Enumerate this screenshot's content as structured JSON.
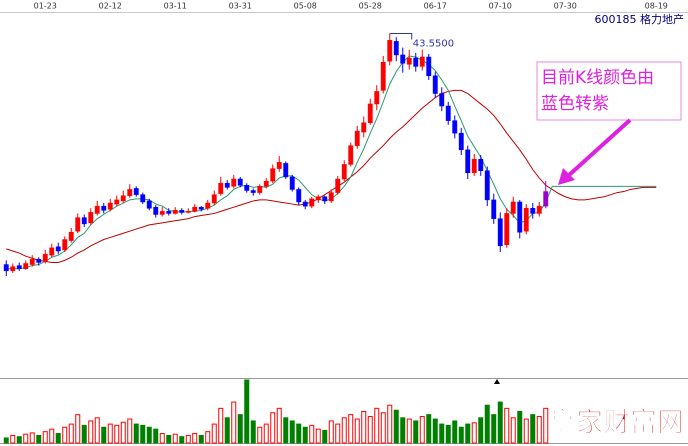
{
  "chart_data": {
    "type": "candlestick",
    "title": "600185  格力地产",
    "categories": [
      null,
      null,
      null,
      null,
      null,
      null,
      "01-23",
      null,
      null,
      null,
      null,
      null,
      null,
      null,
      null,
      null,
      "02-12",
      null,
      null,
      null,
      null,
      null,
      null,
      null,
      null,
      null,
      "03-11",
      null,
      null,
      null,
      null,
      null,
      null,
      null,
      null,
      null,
      "03-31",
      null,
      null,
      null,
      null,
      null,
      null,
      null,
      null,
      null,
      "05-08",
      null,
      null,
      null,
      null,
      null,
      null,
      null,
      null,
      null,
      "05-28",
      null,
      null,
      null,
      null,
      null,
      null,
      null,
      null,
      null,
      "06-17",
      null,
      null,
      null,
      null,
      null,
      null,
      null,
      null,
      null,
      "07-10",
      null,
      null,
      null,
      null,
      null,
      null,
      null,
      null,
      null,
      "07-30",
      null,
      null,
      null,
      null,
      null,
      null,
      null,
      null,
      null,
      null,
      null,
      null,
      null,
      "08-19"
    ],
    "candles": [
      [
        21.4,
        21.8,
        20.3,
        20.8
      ],
      [
        20.8,
        21.5,
        20.6,
        21.2
      ],
      [
        21.3,
        21.6,
        20.8,
        21.0
      ],
      [
        21.0,
        21.8,
        20.9,
        21.5
      ],
      [
        21.4,
        22.3,
        21.2,
        21.9
      ],
      [
        21.9,
        22.1,
        21.3,
        21.6
      ],
      [
        21.7,
        22.8,
        21.5,
        22.4
      ],
      [
        22.3,
        23.4,
        22.1,
        23.0
      ],
      [
        23.1,
        23.5,
        22.4,
        22.7
      ],
      [
        22.8,
        24.1,
        22.6,
        23.8
      ],
      [
        23.7,
        24.9,
        23.5,
        24.5
      ],
      [
        24.6,
        26.3,
        24.4,
        25.9
      ],
      [
        25.9,
        26.2,
        25.0,
        25.3
      ],
      [
        25.4,
        26.8,
        25.2,
        26.4
      ],
      [
        26.3,
        27.5,
        26.1,
        27.0
      ],
      [
        27.0,
        27.3,
        26.3,
        26.6
      ],
      [
        26.7,
        27.7,
        26.5,
        27.3
      ],
      [
        27.2,
        28.0,
        27.0,
        27.6
      ],
      [
        27.5,
        28.5,
        27.3,
        28.0
      ],
      [
        28.0,
        29.1,
        27.8,
        28.6
      ],
      [
        28.7,
        28.9,
        27.9,
        28.1
      ],
      [
        28.1,
        28.3,
        27.2,
        27.4
      ],
      [
        27.5,
        27.7,
        26.6,
        26.8
      ],
      [
        26.9,
        27.1,
        25.9,
        26.2
      ],
      [
        26.2,
        26.9,
        26.0,
        26.5
      ],
      [
        26.5,
        26.8,
        26.1,
        26.3
      ],
      [
        26.3,
        26.9,
        26.2,
        26.6
      ],
      [
        26.6,
        26.8,
        26.2,
        26.4
      ],
      [
        26.4,
        26.8,
        26.3,
        26.5
      ],
      [
        26.5,
        27.2,
        26.4,
        26.9
      ],
      [
        26.9,
        27.0,
        26.5,
        26.7
      ],
      [
        26.8,
        27.6,
        26.6,
        27.3
      ],
      [
        27.3,
        28.5,
        27.1,
        28.1
      ],
      [
        28.2,
        29.8,
        28.0,
        29.2
      ],
      [
        29.2,
        29.5,
        28.6,
        28.8
      ],
      [
        28.9,
        30.0,
        28.7,
        29.6
      ],
      [
        29.6,
        29.8,
        28.8,
        29.0
      ],
      [
        29.0,
        29.2,
        28.3,
        28.5
      ],
      [
        28.5,
        28.7,
        28.0,
        28.3
      ],
      [
        28.3,
        29.1,
        28.1,
        28.9
      ],
      [
        28.9,
        29.7,
        28.7,
        29.4
      ],
      [
        29.4,
        31.0,
        29.2,
        30.6
      ],
      [
        30.6,
        31.8,
        30.3,
        31.2
      ],
      [
        31.1,
        31.3,
        29.6,
        29.8
      ],
      [
        29.8,
        30.0,
        28.4,
        28.6
      ],
      [
        28.6,
        28.8,
        27.1,
        27.4
      ],
      [
        27.4,
        27.6,
        26.7,
        27.0
      ],
      [
        27.0,
        27.9,
        26.8,
        27.7
      ],
      [
        27.6,
        28.1,
        27.3,
        27.9
      ],
      [
        27.9,
        28.0,
        27.2,
        27.5
      ],
      [
        27.5,
        28.6,
        27.3,
        28.3
      ],
      [
        28.3,
        29.9,
        28.1,
        29.6
      ],
      [
        29.6,
        31.4,
        29.4,
        31.0
      ],
      [
        31.0,
        33.1,
        30.8,
        32.8
      ],
      [
        32.8,
        34.7,
        32.5,
        34.2
      ],
      [
        34.1,
        35.6,
        33.6,
        35.0
      ],
      [
        35.0,
        37.3,
        34.8,
        36.8
      ],
      [
        36.8,
        38.6,
        36.2,
        38.0
      ],
      [
        38.1,
        41.4,
        37.8,
        40.8
      ],
      [
        40.9,
        43.55,
        40.5,
        42.9
      ],
      [
        42.8,
        43.2,
        40.9,
        41.5
      ],
      [
        41.5,
        42.2,
        39.8,
        40.7
      ],
      [
        40.6,
        42.0,
        40.1,
        41.2
      ],
      [
        41.2,
        41.7,
        39.9,
        40.4
      ],
      [
        40.4,
        42.0,
        40.0,
        41.3
      ],
      [
        41.3,
        41.6,
        39.1,
        39.5
      ],
      [
        39.5,
        39.9,
        37.4,
        37.8
      ],
      [
        37.8,
        38.4,
        36.1,
        36.6
      ],
      [
        36.6,
        37.0,
        34.8,
        35.2
      ],
      [
        35.2,
        35.7,
        33.5,
        34.0
      ],
      [
        34.0,
        34.5,
        31.9,
        32.4
      ],
      [
        32.4,
        32.8,
        29.6,
        30.2
      ],
      [
        30.2,
        32.0,
        29.9,
        31.5
      ],
      [
        31.5,
        31.9,
        29.9,
        30.4
      ],
      [
        30.4,
        30.8,
        27.0,
        27.6
      ],
      [
        27.6,
        28.2,
        25.3,
        25.8
      ],
      [
        25.8,
        26.4,
        22.6,
        23.2
      ],
      [
        23.3,
        26.8,
        23.0,
        26.3
      ],
      [
        26.3,
        27.9,
        25.9,
        27.4
      ],
      [
        27.4,
        27.6,
        23.9,
        24.5
      ],
      [
        24.6,
        27.2,
        24.3,
        26.8
      ],
      [
        26.8,
        27.3,
        25.8,
        26.3
      ],
      [
        26.3,
        27.4,
        26.0,
        27.0
      ],
      [
        27.0,
        29.4,
        26.8,
        28.4
      ]
    ],
    "up_color": "#ff0000",
    "down_color": "#0000ff",
    "last_color": "#9900cc",
    "ma_short": {
      "color": "#2e9a73",
      "values": [
        21.0,
        21.0,
        21.0,
        21.1,
        21.3,
        21.4,
        21.7,
        22.1,
        22.3,
        22.7,
        23.3,
        24.0,
        24.4,
        25.2,
        25.8,
        26.2,
        26.6,
        27.0,
        27.3,
        27.6,
        27.7,
        27.7,
        27.6,
        27.2,
        27.0,
        26.6,
        26.5,
        26.4,
        26.5,
        26.5,
        26.6,
        26.8,
        27.1,
        27.6,
        28.0,
        28.6,
        28.9,
        29.0,
        28.8,
        28.9,
        28.8,
        29.1,
        29.7,
        29.9,
        29.9,
        29.5,
        28.8,
        28.1,
        27.7,
        27.5,
        27.7,
        28.2,
        28.9,
        29.8,
        31.2,
        32.5,
        34.0,
        35.4,
        37.0,
        38.7,
        39.9,
        40.8,
        41.4,
        41.3,
        41.0,
        40.6,
        40.0,
        39.1,
        38.1,
        36.6,
        35.2,
        33.7,
        32.7,
        31.7,
        30.4,
        29.1,
        27.7,
        26.7,
        26.1,
        25.4,
        25.6,
        26.3,
        26.4,
        27.4,
        28.9,
        28.9,
        28.9,
        28.9,
        28.9,
        28.9,
        28.9,
        28.9,
        28.9,
        28.9,
        28.9,
        28.9,
        28.9,
        28.9,
        28.9,
        28.9,
        28.9
      ]
    },
    "ma_long": {
      "color": "#c00000",
      "values": [
        22.9,
        22.7,
        22.5,
        22.2,
        22.0,
        21.8,
        21.7,
        21.6,
        21.6,
        21.8,
        22.1,
        22.5,
        22.8,
        23.2,
        23.5,
        23.8,
        24.0,
        24.2,
        24.4,
        24.6,
        24.8,
        25.0,
        25.2,
        25.3,
        25.4,
        25.5,
        25.6,
        25.7,
        25.8,
        26.0,
        26.1,
        26.2,
        26.3,
        26.5,
        26.7,
        26.9,
        27.1,
        27.3,
        27.5,
        27.6,
        27.6,
        27.5,
        27.4,
        27.3,
        27.2,
        27.1,
        27.2,
        27.4,
        27.7,
        28.1,
        28.5,
        28.9,
        29.3,
        29.8,
        30.3,
        30.9,
        31.6,
        32.2,
        32.8,
        33.5,
        34.1,
        34.6,
        35.2,
        35.8,
        36.4,
        36.9,
        37.4,
        37.8,
        38.0,
        38.1,
        38.1,
        37.8,
        37.3,
        36.8,
        36.3,
        35.7,
        34.9,
        34.0,
        33.2,
        32.4,
        31.5,
        30.5,
        29.7,
        29.0,
        28.6,
        28.2,
        27.9,
        27.7,
        27.6,
        27.6,
        27.7,
        27.8,
        27.9,
        28.1,
        28.3,
        28.4,
        28.6,
        28.7,
        28.8,
        28.8,
        28.8
      ]
    },
    "ylim": [
      18,
      46
    ],
    "volume": {
      "up_color": "#ff0000",
      "down_color": "#008000",
      "values": [
        8,
        12,
        10,
        14,
        16,
        12,
        18,
        22,
        15,
        25,
        30,
        45,
        28,
        35,
        40,
        25,
        30,
        28,
        33,
        38,
        30,
        28,
        25,
        22,
        15,
        12,
        14,
        10,
        12,
        15,
        12,
        18,
        30,
        55,
        40,
        65,
        45,
        100,
        35,
        25,
        30,
        48,
        55,
        40,
        35,
        30,
        25,
        28,
        22,
        20,
        35,
        30,
        40,
        45,
        38,
        50,
        42,
        55,
        48,
        60,
        52,
        40,
        38,
        35,
        42,
        45,
        38,
        30,
        28,
        35,
        25,
        30,
        32,
        40,
        60,
        45,
        65,
        55,
        40,
        50,
        38,
        45,
        42,
        55
      ]
    },
    "volume_ylim": [
      0,
      100
    ],
    "max_label": "43.5500",
    "annotation": {
      "color": "#e020e0",
      "lines": [
        "目前K线颜色由",
        "蓝色转紫"
      ]
    },
    "watermark": "赢家财富网"
  }
}
